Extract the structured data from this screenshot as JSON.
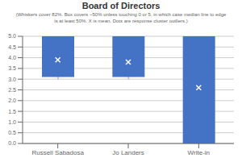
{
  "chart_data": {
    "type": "box",
    "title": "Board of Directors",
    "subtitle": "(Whiskers cover 82%. Box covers ~50% unless touching 0 or 5, in which case median line to edge\nis at least 50%. X is mean. Dots are response cluster outliers.)",
    "categories": [
      "Russell Sabadosa",
      "Jo Landers",
      "Write-in"
    ],
    "boxes": [
      {
        "q1": 3.1,
        "q3": 5.0,
        "mean": 3.9,
        "whislo": 3.0,
        "whishi": 5.0
      },
      {
        "q1": 3.1,
        "q3": 5.0,
        "mean": 3.8,
        "whislo": 3.0,
        "whishi": 5.0
      },
      {
        "q1": 0.0,
        "q3": 5.0,
        "mean": 2.6,
        "whislo": 0.0,
        "whishi": 5.0
      }
    ],
    "color": "#4472C4",
    "marker": "x",
    "ylim": [
      0.0,
      5.0
    ],
    "yticks": [
      {
        "value": 0,
        "label": "0.0"
      },
      0.5,
      {
        "value": 1,
        "label": "1.0"
      },
      1.5,
      {
        "value": 2,
        "label": "2.0"
      },
      2.5,
      {
        "value": 3,
        "label": "3.0"
      },
      3.5,
      {
        "value": 4,
        "label": "4.0"
      },
      4.5,
      {
        "value": 5,
        "label": "5.0"
      }
    ],
    "grid": true
  }
}
